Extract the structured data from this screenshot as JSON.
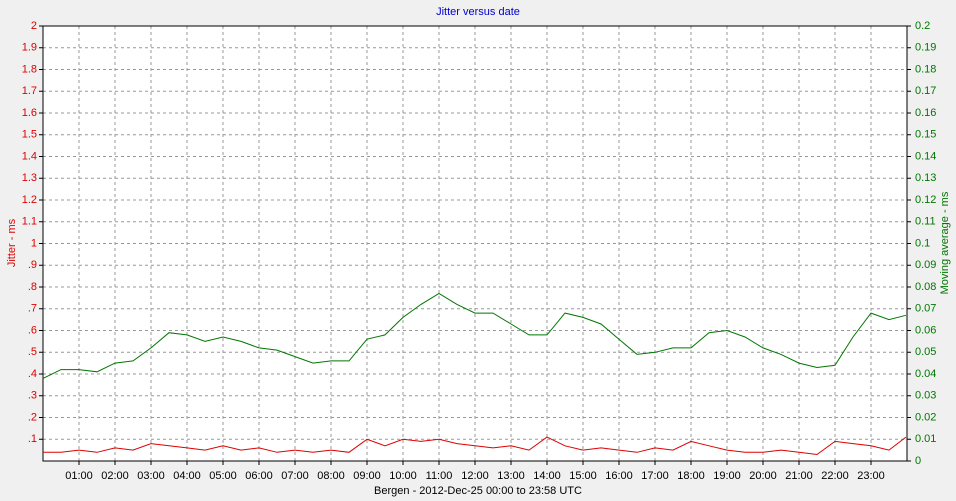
{
  "chart_data": {
    "type": "line",
    "title": "Jitter versus date",
    "x_label": "Bergen  -  2012-Dec-25 00:00 to 23:58 UTC",
    "y_label": "Jitter - ms",
    "y2_label": "Moving average - ms",
    "grid": true,
    "xlim": [
      0,
      24
    ],
    "xticks": [
      {
        "value": 1,
        "label": "01:00"
      },
      {
        "value": 2,
        "label": "02:00"
      },
      {
        "value": 3,
        "label": "03:00"
      },
      {
        "value": 4,
        "label": "04:00"
      },
      {
        "value": 5,
        "label": "05:00"
      },
      {
        "value": 6,
        "label": "06:00"
      },
      {
        "value": 7,
        "label": "07:00"
      },
      {
        "value": 8,
        "label": "08:00"
      },
      {
        "value": 9,
        "label": "09:00"
      },
      {
        "value": 10,
        "label": "10:00"
      },
      {
        "value": 11,
        "label": "11:00"
      },
      {
        "value": 12,
        "label": "12:00"
      },
      {
        "value": 13,
        "label": "13:00"
      },
      {
        "value": 14,
        "label": "14:00"
      },
      {
        "value": 15,
        "label": "15:00"
      },
      {
        "value": 16,
        "label": "16:00"
      },
      {
        "value": 17,
        "label": "17:00"
      },
      {
        "value": 18,
        "label": "18:00"
      },
      {
        "value": 19,
        "label": "19:00"
      },
      {
        "value": 20,
        "label": "20:00"
      },
      {
        "value": 21,
        "label": "21:00"
      },
      {
        "value": 22,
        "label": "22:00"
      },
      {
        "value": 23,
        "label": "23:00"
      }
    ],
    "ylim": [
      0,
      2
    ],
    "yticks": [
      {
        "value": 0.1,
        "label": ".1"
      },
      {
        "value": 0.2,
        "label": ".2"
      },
      {
        "value": 0.3,
        "label": ".3"
      },
      {
        "value": 0.4,
        "label": ".4"
      },
      {
        "value": 0.5,
        "label": ".5"
      },
      {
        "value": 0.6,
        "label": ".6"
      },
      {
        "value": 0.7,
        "label": ".7"
      },
      {
        "value": 0.8,
        "label": ".8"
      },
      {
        "value": 0.9,
        "label": ".9"
      },
      1,
      1.1,
      1.2,
      1.3,
      1.4,
      1.5,
      1.6,
      1.7,
      1.8,
      1.9,
      2
    ],
    "y2lim": [
      0,
      0.2
    ],
    "y2ticks": [
      0,
      0.01,
      0.02,
      0.03,
      0.04,
      0.05,
      0.06,
      0.07,
      0.08,
      0.09,
      0.1,
      0.11,
      0.12,
      0.13,
      0.14,
      0.15,
      0.16,
      0.17,
      0.18,
      0.19,
      0.2
    ],
    "x": [
      0,
      0.5,
      1,
      1.5,
      2,
      2.5,
      3,
      3.5,
      4,
      4.5,
      5,
      5.5,
      6,
      6.5,
      7,
      7.5,
      8,
      8.5,
      9,
      9.5,
      10,
      10.5,
      11,
      11.5,
      12,
      12.5,
      13,
      13.5,
      14,
      14.5,
      15,
      15.5,
      16,
      16.5,
      17,
      17.5,
      18,
      18.5,
      19,
      19.5,
      20,
      20.5,
      21,
      21.5,
      22,
      22.5,
      23,
      23.5,
      23.97
    ],
    "series": [
      {
        "name": "Jitter",
        "color": "#dd0000",
        "values": [
          0.04,
          0.04,
          0.05,
          0.04,
          0.06,
          0.05,
          0.08,
          0.07,
          0.06,
          0.05,
          0.07,
          0.05,
          0.06,
          0.04,
          0.05,
          0.04,
          0.05,
          0.04,
          0.1,
          0.07,
          0.1,
          0.09,
          0.1,
          0.08,
          0.07,
          0.06,
          0.07,
          0.05,
          0.11,
          0.07,
          0.05,
          0.06,
          0.05,
          0.04,
          0.06,
          0.05,
          0.09,
          0.07,
          0.05,
          0.04,
          0.04,
          0.05,
          0.04,
          0.03,
          0.09,
          0.08,
          0.07,
          0.05,
          0.11
        ]
      },
      {
        "name": "Moving average",
        "color": "#007700",
        "axis": "y2",
        "values": [
          0.038,
          0.042,
          0.042,
          0.041,
          0.045,
          0.046,
          0.052,
          0.059,
          0.058,
          0.055,
          0.057,
          0.055,
          0.052,
          0.051,
          0.048,
          0.045,
          0.046,
          0.046,
          0.056,
          0.058,
          0.066,
          0.072,
          0.077,
          0.072,
          0.068,
          0.068,
          0.063,
          0.058,
          0.058,
          0.068,
          0.066,
          0.063,
          0.056,
          0.049,
          0.05,
          0.052,
          0.052,
          0.059,
          0.06,
          0.057,
          0.052,
          0.049,
          0.045,
          0.043,
          0.044,
          0.057,
          0.068,
          0.065,
          0.067
        ]
      }
    ]
  }
}
